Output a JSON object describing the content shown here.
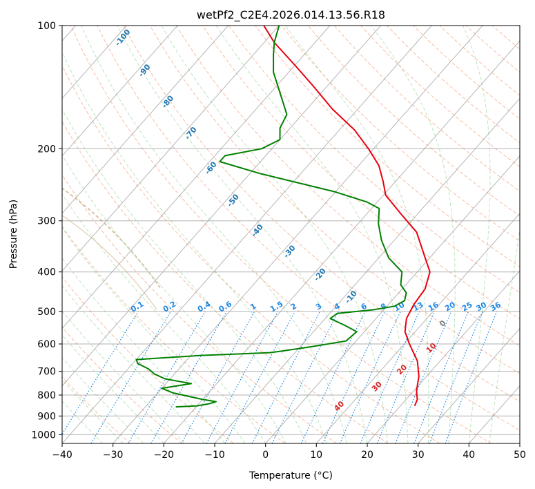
{
  "chart_data": {
    "type": "line",
    "title": "wetPf2_C2E4.2026.014.13.56.R18",
    "xlabel": "Temperature (°C)",
    "ylabel": "Pressure (hPa)",
    "xlim": [
      -40,
      50
    ],
    "ylim": [
      1050,
      100
    ],
    "y_scale": "log",
    "skew": true,
    "grid": true,
    "x_ticks": [
      -40,
      -30,
      -20,
      -10,
      0,
      10,
      20,
      30,
      40,
      50
    ],
    "x_tick_labels": [
      "−40",
      "−30",
      "−20",
      "−10",
      "0",
      "10",
      "20",
      "30",
      "40",
      "50"
    ],
    "y_ticks": [
      100,
      200,
      300,
      400,
      500,
      600,
      700,
      800,
      900,
      1000
    ],
    "y_tick_labels": [
      "100",
      "200",
      "300",
      "400",
      "500",
      "600",
      "700",
      "800",
      "900",
      "1000"
    ],
    "series": [
      {
        "color": "#e8000b",
        "points": [
          [
            22.8,
            850
          ],
          [
            22.2,
            820
          ],
          [
            20.5,
            780
          ],
          [
            18.5,
            720
          ],
          [
            15.5,
            660
          ],
          [
            11,
            600
          ],
          [
            8,
            560
          ],
          [
            6,
            520
          ],
          [
            5,
            480
          ],
          [
            4.5,
            440
          ],
          [
            2.5,
            400
          ],
          [
            -2,
            360
          ],
          [
            -7,
            320
          ],
          [
            -13,
            290
          ],
          [
            -19.5,
            260
          ],
          [
            -22.5,
            240
          ],
          [
            -26,
            220
          ],
          [
            -31,
            200
          ],
          [
            -37,
            180
          ],
          [
            -45,
            160
          ],
          [
            -53,
            140
          ],
          [
            -60,
            125
          ],
          [
            -68,
            110
          ],
          [
            -73,
            100
          ]
        ]
      },
      {
        "color": "#008000",
        "points": [
          [
            -24,
            855
          ],
          [
            -20,
            850
          ],
          [
            -18,
            840
          ],
          [
            -17,
            830
          ],
          [
            -20,
            820
          ],
          [
            -27,
            790
          ],
          [
            -30,
            770
          ],
          [
            -25,
            750
          ],
          [
            -31,
            730
          ],
          [
            -34,
            710
          ],
          [
            -36,
            690
          ],
          [
            -39,
            670
          ],
          [
            -40,
            655
          ],
          [
            -28,
            640
          ],
          [
            -15,
            630
          ],
          [
            -13,
            625
          ],
          [
            -8,
            610
          ],
          [
            -2,
            590
          ],
          [
            -1.5,
            560
          ],
          [
            -5,
            540
          ],
          [
            -9,
            520
          ],
          [
            -8.5,
            505
          ],
          [
            -2,
            495
          ],
          [
            1.5,
            485
          ],
          [
            2.5,
            470
          ],
          [
            1.5,
            450
          ],
          [
            -1,
            430
          ],
          [
            -3,
            400
          ],
          [
            -8,
            370
          ],
          [
            -12.5,
            335
          ],
          [
            -16,
            305
          ],
          [
            -18.5,
            280
          ],
          [
            -22,
            270
          ],
          [
            -30,
            255
          ],
          [
            -48,
            230
          ],
          [
            -58,
            215
          ],
          [
            -58,
            208
          ],
          [
            -52,
            200
          ],
          [
            -50,
            190
          ],
          [
            -52,
            178
          ],
          [
            -53,
            165
          ],
          [
            -57,
            150
          ],
          [
            -63,
            130
          ],
          [
            -66,
            118
          ],
          [
            -68,
            110
          ],
          [
            -70,
            100
          ]
        ]
      }
    ],
    "mixing_ratio_labels": [
      "0.1",
      "0.2",
      "0.4",
      "0.6",
      "1",
      "1.5",
      "2",
      "3",
      "4",
      "6",
      "8",
      "10",
      "13",
      "16",
      "20",
      "25",
      "30",
      "36"
    ],
    "dry_adiabat_labels": [
      "-100",
      "-90",
      "-80",
      "-70",
      "-60",
      "-50",
      "-40",
      "-30",
      "-20",
      "-10"
    ],
    "moist_adiabat_labels": [
      "0",
      "10",
      "20",
      "30",
      "40"
    ],
    "colors": {
      "temperature": "#e8000b",
      "dewpoint": "#008000",
      "isotherm_grid": "#9e9e9e",
      "dry_adiabat": "#f4a582",
      "moist_adiabat": "#b2dfb2",
      "mixing_ratio": "#1e88e5",
      "dry_adiabat_label": "#1f77b4",
      "moist_adiabat_label": "#d62728",
      "moist_adiabat_zero_label": "#7f7f7f",
      "curved_reference": "#d2b48c"
    }
  }
}
